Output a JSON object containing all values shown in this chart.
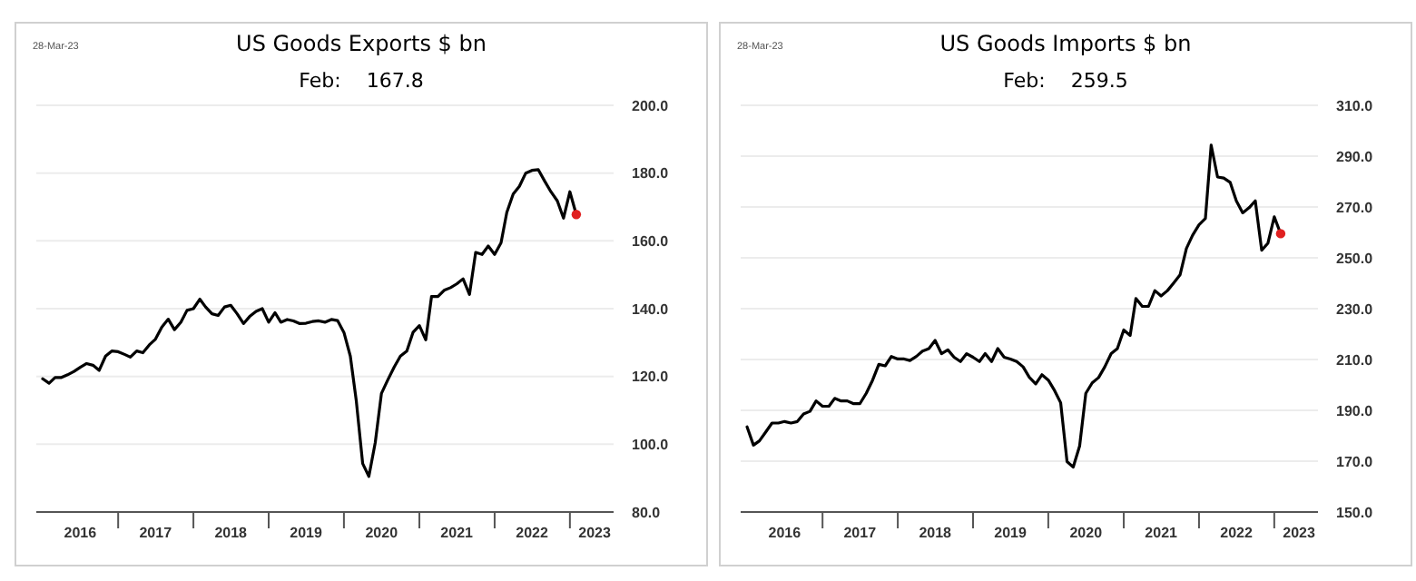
{
  "chart_data": [
    {
      "type": "line",
      "title": "US Goods Exports $ bn",
      "annotations": [
        "28-Mar-23",
        "Feb:    167.8"
      ],
      "xlim": [
        "2015-12",
        "2023-08"
      ],
      "xticks": [
        {
          "value": "2016-07",
          "label": "2016"
        },
        {
          "value": "2017-01",
          "label": null
        },
        {
          "value": "2017-07",
          "label": "2017"
        },
        {
          "value": "2018-01",
          "label": null
        },
        {
          "value": "2018-07",
          "label": "2018"
        },
        {
          "value": "2019-01",
          "label": null
        },
        {
          "value": "2019-07",
          "label": "2019"
        },
        {
          "value": "2020-01",
          "label": null
        },
        {
          "value": "2020-07",
          "label": "2020"
        },
        {
          "value": "2021-01",
          "label": null
        },
        {
          "value": "2021-07",
          "label": "2021"
        },
        {
          "value": "2022-01",
          "label": null
        },
        {
          "value": "2022-07",
          "label": "2022"
        },
        {
          "value": "2023-01",
          "label": null
        },
        {
          "value": "2023-05",
          "label": "2023"
        }
      ],
      "ylim": [
        80,
        200
      ],
      "yticks": [
        {
          "value": 80,
          "label": "80.0"
        },
        {
          "value": 100,
          "label": "100.0"
        },
        {
          "value": 120,
          "label": "120.0"
        },
        {
          "value": 140,
          "label": "140.0"
        },
        {
          "value": 160,
          "label": "160.0"
        },
        {
          "value": 180,
          "label": "180.0"
        },
        {
          "value": 200,
          "label": "200.0"
        }
      ],
      "grid": "y",
      "x": [
        "2016-01",
        "2016-02",
        "2016-03",
        "2016-04",
        "2016-05",
        "2016-06",
        "2016-07",
        "2016-08",
        "2016-09",
        "2016-10",
        "2016-11",
        "2016-12",
        "2017-01",
        "2017-02",
        "2017-03",
        "2017-04",
        "2017-05",
        "2017-06",
        "2017-07",
        "2017-08",
        "2017-09",
        "2017-10",
        "2017-11",
        "2017-12",
        "2018-01",
        "2018-02",
        "2018-03",
        "2018-04",
        "2018-05",
        "2018-06",
        "2018-07",
        "2018-08",
        "2018-09",
        "2018-10",
        "2018-11",
        "2018-12",
        "2019-01",
        "2019-02",
        "2019-03",
        "2019-04",
        "2019-05",
        "2019-06",
        "2019-07",
        "2019-08",
        "2019-09",
        "2019-10",
        "2019-11",
        "2019-12",
        "2020-01",
        "2020-02",
        "2020-03",
        "2020-04",
        "2020-05",
        "2020-06",
        "2020-07",
        "2020-08",
        "2020-09",
        "2020-10",
        "2020-11",
        "2020-12",
        "2021-01",
        "2021-02",
        "2021-03",
        "2021-04",
        "2021-05",
        "2021-06",
        "2021-07",
        "2021-08",
        "2021-09",
        "2021-10",
        "2021-11",
        "2021-12",
        "2022-01",
        "2022-02",
        "2022-03",
        "2022-04",
        "2022-05",
        "2022-06",
        "2022-07",
        "2022-08",
        "2022-09",
        "2022-10",
        "2022-11",
        "2022-12",
        "2023-01",
        "2023-02"
      ],
      "series": [
        {
          "color": "#000000",
          "values": [
            119.3,
            118,
            119.7,
            119.7,
            120.5,
            121.5,
            122.7,
            123.8,
            123.3,
            121.8,
            126,
            127.5,
            127.3,
            126.5,
            125.7,
            127.5,
            127,
            129.3,
            131,
            134.6,
            136.9,
            133.8,
            136,
            139.5,
            140,
            142.8,
            140.5,
            138.5,
            138,
            140.5,
            141,
            138.5,
            135.6,
            137.7,
            139.2,
            140,
            136,
            138.8,
            136,
            136.8,
            136.4,
            135.6,
            135.7,
            136.2,
            136.4,
            136,
            136.8,
            136.5,
            133,
            126,
            112.8,
            94.3,
            90.5,
            100.5,
            115,
            119,
            122.8,
            126,
            127.5,
            133,
            135,
            130.8,
            143.6,
            143.6,
            145.4,
            146.2,
            147.3,
            148.8,
            144.2,
            156.6,
            156,
            158.5,
            156,
            159.4,
            168.4,
            173.8,
            176.1,
            180,
            180.8,
            181,
            177.6,
            174.5,
            171.8,
            166.7,
            174.5,
            167.8
          ]
        },
        {
          "type": "scatter",
          "color": "#e02020",
          "x": [
            "2023-02"
          ],
          "values": [
            167.8
          ]
        }
      ]
    },
    {
      "type": "line",
      "title": "US Goods Imports $ bn",
      "annotations": [
        "28-Mar-23",
        "Feb:    259.5"
      ],
      "xlim": [
        "2015-12",
        "2023-08"
      ],
      "xticks": [
        {
          "value": "2016-07",
          "label": "2016"
        },
        {
          "value": "2017-01",
          "label": null
        },
        {
          "value": "2017-07",
          "label": "2017"
        },
        {
          "value": "2018-01",
          "label": null
        },
        {
          "value": "2018-07",
          "label": "2018"
        },
        {
          "value": "2019-01",
          "label": null
        },
        {
          "value": "2019-07",
          "label": "2019"
        },
        {
          "value": "2020-01",
          "label": null
        },
        {
          "value": "2020-07",
          "label": "2020"
        },
        {
          "value": "2021-01",
          "label": null
        },
        {
          "value": "2021-07",
          "label": "2021"
        },
        {
          "value": "2022-01",
          "label": null
        },
        {
          "value": "2022-07",
          "label": "2022"
        },
        {
          "value": "2023-01",
          "label": null
        },
        {
          "value": "2023-05",
          "label": "2023"
        }
      ],
      "ylim": [
        150,
        310
      ],
      "yticks": [
        {
          "value": 150,
          "label": "150.0"
        },
        {
          "value": 170,
          "label": "170.0"
        },
        {
          "value": 190,
          "label": "190.0"
        },
        {
          "value": 210,
          "label": "210.0"
        },
        {
          "value": 230,
          "label": "230.0"
        },
        {
          "value": 250,
          "label": "250.0"
        },
        {
          "value": 270,
          "label": "270.0"
        },
        {
          "value": 290,
          "label": "290.0"
        },
        {
          "value": 310,
          "label": "310.0"
        }
      ],
      "grid": "y",
      "x": [
        "2016-01",
        "2016-02",
        "2016-03",
        "2016-04",
        "2016-05",
        "2016-06",
        "2016-07",
        "2016-08",
        "2016-09",
        "2016-10",
        "2016-11",
        "2016-12",
        "2017-01",
        "2017-02",
        "2017-03",
        "2017-04",
        "2017-05",
        "2017-06",
        "2017-07",
        "2017-08",
        "2017-09",
        "2017-10",
        "2017-11",
        "2017-12",
        "2018-01",
        "2018-02",
        "2018-03",
        "2018-04",
        "2018-05",
        "2018-06",
        "2018-07",
        "2018-08",
        "2018-09",
        "2018-10",
        "2018-11",
        "2018-12",
        "2019-01",
        "2019-02",
        "2019-03",
        "2019-04",
        "2019-05",
        "2019-06",
        "2019-07",
        "2019-08",
        "2019-09",
        "2019-10",
        "2019-11",
        "2019-12",
        "2020-01",
        "2020-02",
        "2020-03",
        "2020-04",
        "2020-05",
        "2020-06",
        "2020-07",
        "2020-08",
        "2020-09",
        "2020-10",
        "2020-11",
        "2020-12",
        "2021-01",
        "2021-02",
        "2021-03",
        "2021-04",
        "2021-05",
        "2021-06",
        "2021-07",
        "2021-08",
        "2021-09",
        "2021-10",
        "2021-11",
        "2021-12",
        "2022-01",
        "2022-02",
        "2022-03",
        "2022-04",
        "2022-05",
        "2022-06",
        "2022-07",
        "2022-08",
        "2022-09",
        "2022-10",
        "2022-11",
        "2022-12",
        "2023-01",
        "2023-02"
      ],
      "series": [
        {
          "color": "#000000",
          "values": [
            183.5,
            176.3,
            178,
            181.5,
            185,
            185,
            185.6,
            185,
            185.6,
            188.6,
            189.6,
            193.7,
            191.6,
            191.6,
            194.7,
            193.7,
            193.7,
            192.6,
            192.6,
            196.7,
            201.9,
            208.1,
            207.5,
            211.2,
            210.2,
            210.2,
            209.6,
            211.2,
            213.3,
            214.3,
            217.5,
            212.3,
            213.8,
            210.9,
            209.2,
            212.3,
            210.9,
            209.2,
            212.3,
            209.2,
            214.3,
            210.9,
            210.2,
            209.2,
            207.1,
            203,
            200.4,
            204,
            201.9,
            197.7,
            193,
            169.8,
            167.7,
            176,
            196.7,
            200.8,
            202.9,
            207.1,
            212.3,
            214.3,
            221.6,
            219.5,
            234,
            230.9,
            230.9,
            237.1,
            235,
            237.1,
            240.2,
            243.3,
            253.7,
            258.9,
            263,
            265.5,
            294.3,
            281.8,
            281.4,
            279.7,
            272.4,
            267.7,
            269.7,
            272.4,
            253,
            255.7,
            266.1,
            259.5
          ]
        },
        {
          "type": "scatter",
          "color": "#e02020",
          "x": [
            "2023-02"
          ],
          "values": [
            259.5
          ]
        }
      ]
    }
  ]
}
